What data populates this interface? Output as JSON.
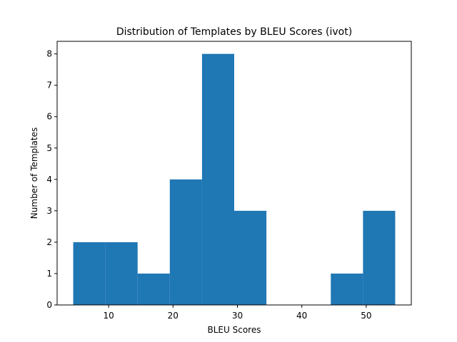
{
  "chart_data": {
    "type": "bar",
    "subtype": "histogram",
    "title": "Distribution of Templates by BLEU Scores (ivot)",
    "xlabel": "BLEU Scores",
    "ylabel": "Number of Templates",
    "bins": [
      {
        "start": 4.5,
        "end": 9.5,
        "count": 2
      },
      {
        "start": 9.5,
        "end": 14.5,
        "count": 2
      },
      {
        "start": 14.5,
        "end": 19.5,
        "count": 1
      },
      {
        "start": 19.5,
        "end": 24.5,
        "count": 4
      },
      {
        "start": 24.5,
        "end": 29.5,
        "count": 8
      },
      {
        "start": 29.5,
        "end": 34.5,
        "count": 3
      },
      {
        "start": 34.5,
        "end": 39.5,
        "count": 0
      },
      {
        "start": 39.5,
        "end": 44.5,
        "count": 0
      },
      {
        "start": 44.5,
        "end": 49.5,
        "count": 1
      },
      {
        "start": 49.5,
        "end": 54.5,
        "count": 3
      }
    ],
    "xlim": [
      2.0,
      57.0
    ],
    "ylim": [
      0,
      8.4
    ],
    "xticks": [
      10,
      20,
      30,
      40,
      50
    ],
    "yticks": [
      0,
      1,
      2,
      3,
      4,
      5,
      6,
      7,
      8
    ],
    "bar_color": "#1f77b4",
    "grid": false,
    "legend": "none"
  }
}
